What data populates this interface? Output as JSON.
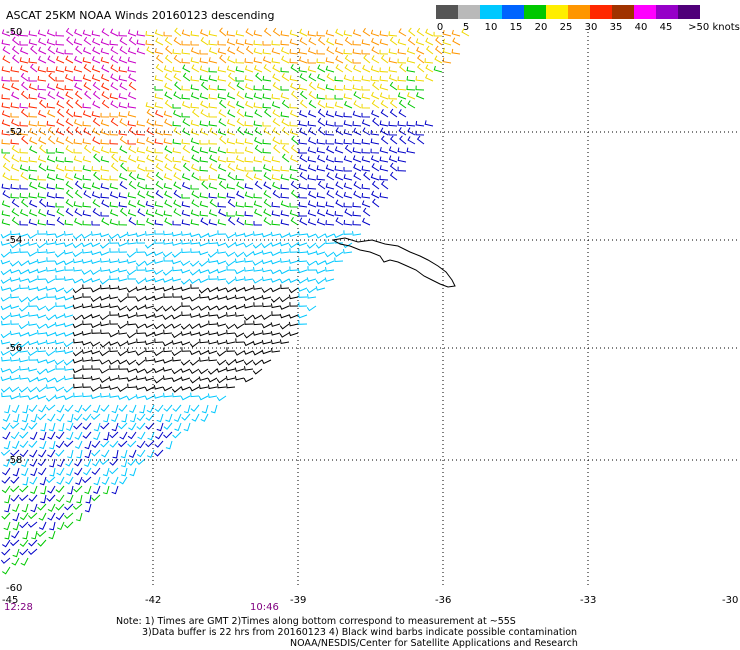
{
  "title": "ASCAT 25KM NOAA Winds 20160123 descending",
  "legend": {
    "colors": [
      "#555555",
      "#b9b9b9",
      "#00c8ff",
      "#0064ff",
      "#00c800",
      "#ffee00",
      "#ff9600",
      "#ff2800",
      "#a03200",
      "#ff00ff",
      "#9600c8",
      "#50007a"
    ],
    "labels": [
      "0",
      "5",
      "10",
      "15",
      "20",
      "25",
      "30",
      "35",
      "40",
      "45",
      ">50 knots"
    ]
  },
  "map": {
    "lon_ticks": [
      "-45",
      "-42",
      "-39",
      "-36",
      "-33",
      "-30"
    ],
    "lat_ticks": [
      "-50",
      "-52",
      "-54",
      "-56",
      "-58",
      "-60"
    ],
    "times": [
      "12:28",
      "10:46"
    ],
    "region_colors": {
      "black": "#000000",
      "cyan": "#00c8ff",
      "blue": "#0000c8",
      "green": "#00c800",
      "yellow": "#f0d800",
      "orange": "#ff9600",
      "red": "#ff2800",
      "magenta": "#c800c8",
      "coast": "#000000"
    }
  },
  "notes": {
    "line1": "Note: 1) Times are GMT 2)Times along bottom correspond to measurement at ~55S",
    "line2": "3)Data buffer is 22 hrs from 20160123 4) Black wind barbs indicate possible contamination",
    "line3": "NOAA/NESDIS/Center for Satellite Applications and Research"
  }
}
